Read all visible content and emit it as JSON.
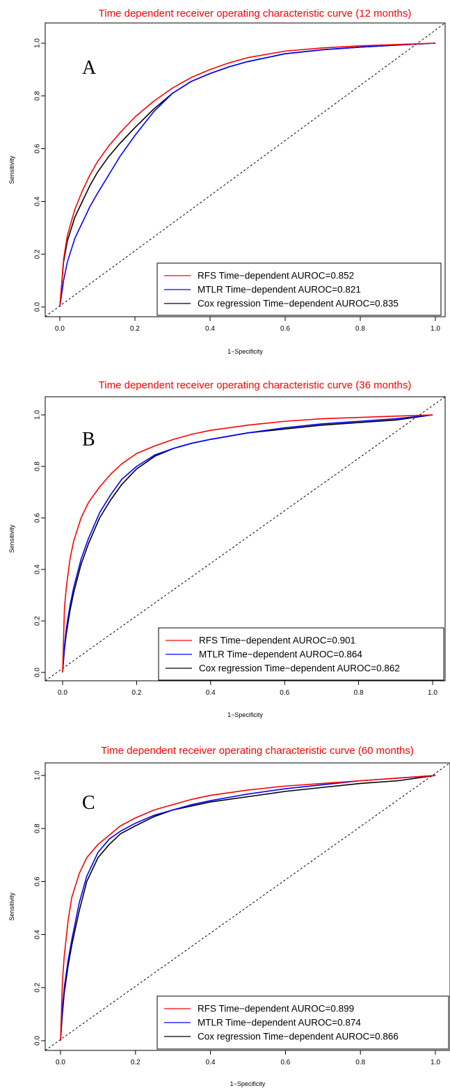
{
  "chart_data": [
    {
      "type": "line",
      "title": "Time dependent receiver operating characteristic curve (12 months)",
      "panel_label": "A",
      "xlabel": "1−Specificity",
      "ylabel": "Sensitivity",
      "xlim": [
        0,
        1
      ],
      "ylim": [
        0,
        1
      ],
      "ticks": [
        "0.0",
        "0.2",
        "0.4",
        "0.6",
        "0.8",
        "1.0"
      ],
      "legend_position": "bottom-right",
      "series": [
        {
          "name": "RFS Time−dependent AUROC=0.852",
          "color": "#ff0000",
          "x": [
            0,
            0.01,
            0.02,
            0.04,
            0.06,
            0.08,
            0.1,
            0.13,
            0.16,
            0.2,
            0.25,
            0.3,
            0.35,
            0.4,
            0.45,
            0.5,
            0.6,
            0.7,
            0.8,
            0.9,
            1.0
          ],
          "y": [
            0,
            0.18,
            0.27,
            0.37,
            0.44,
            0.5,
            0.55,
            0.61,
            0.66,
            0.72,
            0.78,
            0.83,
            0.87,
            0.9,
            0.925,
            0.945,
            0.97,
            0.982,
            0.99,
            0.995,
            1.0
          ]
        },
        {
          "name": "MTLR Time−dependent AUROC=0.821",
          "color": "#0000ff",
          "x": [
            0,
            0.01,
            0.02,
            0.04,
            0.06,
            0.08,
            0.1,
            0.13,
            0.16,
            0.2,
            0.25,
            0.3,
            0.35,
            0.4,
            0.45,
            0.5,
            0.6,
            0.7,
            0.8,
            0.9,
            1.0
          ],
          "y": [
            0,
            0.1,
            0.17,
            0.26,
            0.32,
            0.38,
            0.43,
            0.5,
            0.57,
            0.65,
            0.74,
            0.81,
            0.855,
            0.885,
            0.91,
            0.93,
            0.96,
            0.975,
            0.985,
            0.993,
            1.0
          ]
        },
        {
          "name": "Cox regression Time−dependent AUROC=0.835",
          "color": "#000000",
          "x": [
            0,
            0.01,
            0.02,
            0.04,
            0.06,
            0.08,
            0.1,
            0.13,
            0.16,
            0.2,
            0.25,
            0.3,
            0.35,
            0.4,
            0.45,
            0.5,
            0.6,
            0.7,
            0.8,
            0.9,
            1.0
          ],
          "y": [
            0,
            0.17,
            0.25,
            0.34,
            0.4,
            0.46,
            0.51,
            0.57,
            0.62,
            0.68,
            0.75,
            0.81,
            0.855,
            0.885,
            0.91,
            0.93,
            0.96,
            0.975,
            0.985,
            0.993,
            1.0
          ]
        }
      ]
    },
    {
      "type": "line",
      "title": "Time dependent receiver operating characteristic curve (36 months)",
      "panel_label": "B",
      "xlabel": "1−Specificity",
      "ylabel": "Sensitivity",
      "xlim": [
        0,
        1
      ],
      "ylim": [
        0,
        1
      ],
      "ticks": [
        "0.0",
        "0.2",
        "0.4",
        "0.6",
        "0.8",
        "1.0"
      ],
      "legend_position": "bottom-right",
      "series": [
        {
          "name": "RFS Time−dependent AUROC=0.901",
          "color": "#ff0000",
          "x": [
            0,
            0.005,
            0.01,
            0.02,
            0.03,
            0.05,
            0.07,
            0.1,
            0.13,
            0.16,
            0.2,
            0.25,
            0.3,
            0.35,
            0.4,
            0.5,
            0.6,
            0.7,
            0.8,
            0.9,
            1.0
          ],
          "y": [
            0,
            0.25,
            0.33,
            0.44,
            0.51,
            0.6,
            0.66,
            0.72,
            0.77,
            0.81,
            0.85,
            0.88,
            0.905,
            0.925,
            0.94,
            0.96,
            0.975,
            0.985,
            0.99,
            0.995,
            1.0
          ]
        },
        {
          "name": "MTLR Time−dependent AUROC=0.864",
          "color": "#0000ff",
          "x": [
            0,
            0.005,
            0.01,
            0.02,
            0.03,
            0.05,
            0.07,
            0.1,
            0.13,
            0.16,
            0.2,
            0.25,
            0.3,
            0.35,
            0.4,
            0.5,
            0.6,
            0.7,
            0.8,
            0.9,
            1.0
          ],
          "y": [
            0,
            0.1,
            0.17,
            0.26,
            0.33,
            0.44,
            0.52,
            0.62,
            0.69,
            0.75,
            0.8,
            0.845,
            0.87,
            0.89,
            0.905,
            0.93,
            0.95,
            0.965,
            0.975,
            0.985,
            1.0
          ]
        },
        {
          "name": "Cox regression Time−dependent AUROC=0.862",
          "color": "#000000",
          "x": [
            0,
            0.005,
            0.01,
            0.02,
            0.03,
            0.05,
            0.07,
            0.1,
            0.13,
            0.16,
            0.2,
            0.25,
            0.3,
            0.35,
            0.4,
            0.5,
            0.6,
            0.7,
            0.8,
            0.9,
            1.0
          ],
          "y": [
            0,
            0.09,
            0.15,
            0.24,
            0.31,
            0.42,
            0.5,
            0.6,
            0.67,
            0.73,
            0.79,
            0.84,
            0.87,
            0.89,
            0.905,
            0.93,
            0.945,
            0.96,
            0.97,
            0.98,
            1.0
          ]
        }
      ]
    },
    {
      "type": "line",
      "title": "Time dependent receiver operating characteristic curve (60 months)",
      "panel_label": "C",
      "xlabel": "1−Specificity",
      "ylabel": "Sensitivity",
      "xlim": [
        0,
        1
      ],
      "ylim": [
        0,
        1
      ],
      "ticks": [
        "0.0",
        "0.2",
        "0.4",
        "0.6",
        "0.8",
        "1.0"
      ],
      "legend_position": "bottom-right",
      "series": [
        {
          "name": "RFS Time−dependent AUROC=0.899",
          "color": "#ff0000",
          "x": [
            0,
            0.005,
            0.01,
            0.02,
            0.03,
            0.05,
            0.07,
            0.1,
            0.13,
            0.16,
            0.2,
            0.25,
            0.3,
            0.35,
            0.4,
            0.5,
            0.6,
            0.7,
            0.8,
            0.9,
            1.0
          ],
          "y": [
            0,
            0.22,
            0.32,
            0.45,
            0.54,
            0.63,
            0.69,
            0.74,
            0.775,
            0.81,
            0.84,
            0.87,
            0.89,
            0.91,
            0.925,
            0.945,
            0.96,
            0.97,
            0.98,
            0.99,
            1.0
          ]
        },
        {
          "name": "MTLR Time−dependent AUROC=0.874",
          "color": "#0000ff",
          "x": [
            0,
            0.005,
            0.01,
            0.02,
            0.03,
            0.05,
            0.07,
            0.1,
            0.13,
            0.16,
            0.2,
            0.25,
            0.3,
            0.35,
            0.4,
            0.5,
            0.6,
            0.7,
            0.8,
            0.9,
            1.0
          ],
          "y": [
            0,
            0.12,
            0.2,
            0.3,
            0.38,
            0.52,
            0.62,
            0.71,
            0.76,
            0.79,
            0.82,
            0.85,
            0.87,
            0.89,
            0.905,
            0.93,
            0.95,
            0.965,
            0.98,
            0.99,
            1.0
          ]
        },
        {
          "name": "Cox regression Time−dependent AUROC=0.866",
          "color": "#000000",
          "x": [
            0,
            0.005,
            0.01,
            0.02,
            0.03,
            0.05,
            0.07,
            0.1,
            0.13,
            0.16,
            0.2,
            0.25,
            0.3,
            0.35,
            0.4,
            0.5,
            0.6,
            0.7,
            0.8,
            0.9,
            1.0
          ],
          "y": [
            0,
            0.1,
            0.18,
            0.28,
            0.36,
            0.49,
            0.6,
            0.69,
            0.74,
            0.78,
            0.81,
            0.845,
            0.87,
            0.885,
            0.9,
            0.92,
            0.94,
            0.955,
            0.97,
            0.98,
            1.0
          ]
        }
      ]
    }
  ]
}
